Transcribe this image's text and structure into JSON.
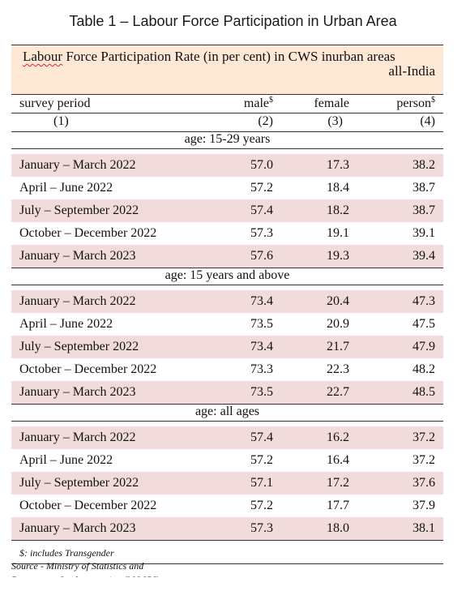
{
  "title": "Table 1 – Labour Force Participation in Urban Area",
  "header": {
    "line1_word": "Labour",
    "line1_rest": " Force Participation Rate (in per cent) in CWS inurban areas",
    "line2": "all-India"
  },
  "columns": {
    "period": "survey period",
    "male": "male",
    "female": "female",
    "person": "person",
    "dollar": "$",
    "nums": [
      "(1)",
      "(2)",
      "(3)",
      "(4)"
    ]
  },
  "groups": [
    {
      "label": "age: 15-29 years",
      "rows": [
        {
          "period": "January – March 2022",
          "male": "57.0",
          "female": "17.3",
          "person": "38.2"
        },
        {
          "period": "April – June 2022",
          "male": "57.2",
          "female": "18.4",
          "person": "38.7"
        },
        {
          "period": "July – September 2022",
          "male": "57.4",
          "female": "18.2",
          "person": "38.7"
        },
        {
          "period": "October – December 2022",
          "male": "57.3",
          "female": "19.1",
          "person": "39.1"
        },
        {
          "period": "January – March 2023",
          "male": "57.6",
          "female": "19.3",
          "person": "39.4"
        }
      ]
    },
    {
      "label": "age: 15 years and above",
      "rows": [
        {
          "period": "January – March 2022",
          "male": "73.4",
          "female": "20.4",
          "person": "47.3"
        },
        {
          "period": "April – June 2022",
          "male": "73.5",
          "female": "20.9",
          "person": "47.5"
        },
        {
          "period": "July – September 2022",
          "male": "73.4",
          "female": "21.7",
          "person": "47.9"
        },
        {
          "period": "October – December 2022",
          "male": "73.3",
          "female": "22.3",
          "person": "48.2"
        },
        {
          "period": "January – March 2023",
          "male": "73.5",
          "female": "22.7",
          "person": "48.5"
        }
      ]
    },
    {
      "label": "age: all ages",
      "rows": [
        {
          "period": "January – March 2022",
          "male": "57.4",
          "female": "16.2",
          "person": "37.2"
        },
        {
          "period": "April – June 2022",
          "male": "57.2",
          "female": "16.4",
          "person": "37.2"
        },
        {
          "period": "July – September 2022",
          "male": "57.1",
          "female": "17.2",
          "person": "37.6"
        },
        {
          "period": "October – December 2022",
          "male": "57.2",
          "female": "17.7",
          "person": "37.9"
        },
        {
          "period": "January – March 2023",
          "male": "57.3",
          "female": "18.0",
          "person": "38.1"
        }
      ]
    }
  ],
  "footnote": "$: includes Transgender",
  "source": "Source  - Ministry of Statistics and Programme Implementation (MOSPI)",
  "colors": {
    "header_bg": "#fde8d6",
    "shaded_row": "#f2dcdb"
  }
}
